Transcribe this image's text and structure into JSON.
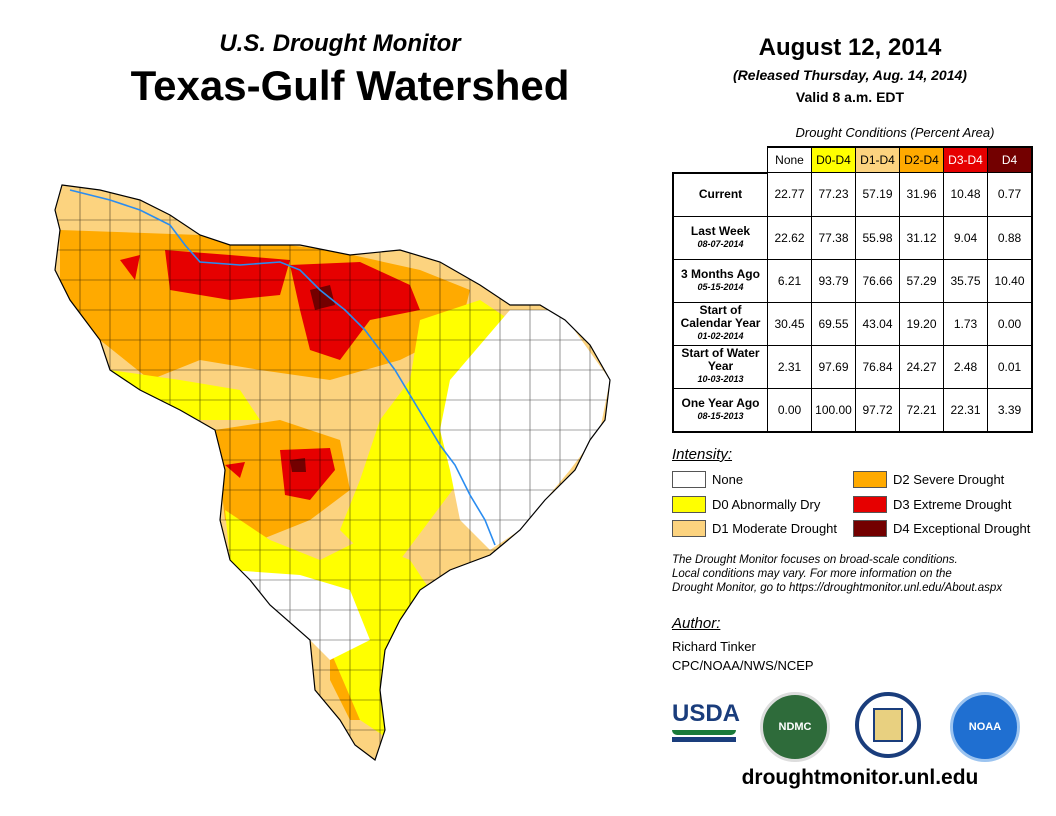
{
  "header": {
    "subtitle": "U.S. Drought Monitor",
    "title": "Texas-Gulf Watershed",
    "date": "August 12, 2014",
    "released": "(Released Thursday, Aug. 14, 2014)",
    "valid": "Valid 8 a.m. EDT"
  },
  "table": {
    "caption": "Drought Conditions (Percent Area)",
    "columns": [
      "None",
      "D0-D4",
      "D1-D4",
      "D2-D4",
      "D3-D4",
      "D4"
    ],
    "rows": [
      {
        "label": "Current",
        "date": "",
        "values": [
          "22.77",
          "77.23",
          "57.19",
          "31.96",
          "10.48",
          "0.77"
        ]
      },
      {
        "label": "Last Week",
        "date": "08-07-2014",
        "values": [
          "22.62",
          "77.38",
          "55.98",
          "31.12",
          "9.04",
          "0.88"
        ]
      },
      {
        "label": "3 Months Ago",
        "date": "05-15-2014",
        "values": [
          "6.21",
          "93.79",
          "76.66",
          "57.29",
          "35.75",
          "10.40"
        ]
      },
      {
        "label": "Start of Calendar Year",
        "date": "01-02-2014",
        "values": [
          "30.45",
          "69.55",
          "43.04",
          "19.20",
          "1.73",
          "0.00"
        ]
      },
      {
        "label": "Start of Water Year",
        "date": "10-03-2013",
        "values": [
          "2.31",
          "97.69",
          "76.84",
          "24.27",
          "2.48",
          "0.01"
        ]
      },
      {
        "label": "One Year Ago",
        "date": "08-15-2013",
        "values": [
          "0.00",
          "100.00",
          "97.72",
          "72.21",
          "22.31",
          "3.39"
        ]
      }
    ]
  },
  "legend": {
    "title": "Intensity:",
    "items": [
      {
        "label": "None",
        "color": "#ffffff"
      },
      {
        "label": "D0 Abnormally Dry",
        "color": "#ffff00"
      },
      {
        "label": "D1 Moderate Drought",
        "color": "#fcd37f"
      },
      {
        "label": "D2 Severe Drought",
        "color": "#ffaa00"
      },
      {
        "label": "D3 Extreme Drought",
        "color": "#e60000"
      },
      {
        "label": "D4 Exceptional Drought",
        "color": "#730000"
      }
    ]
  },
  "note": [
    "The Drought Monitor focuses on broad-scale conditions.",
    "Local conditions may vary. For more information on the",
    "Drought Monitor, go to https://droughtmonitor.unl.edu/About.aspx"
  ],
  "author": {
    "title": "Author:",
    "name": "Richard Tinker",
    "org": "CPC/NOAA/NWS/NCEP"
  },
  "logos": {
    "usda": "USDA",
    "ndmc": "NDMC",
    "noaa": "NOAA"
  },
  "footer_url": "droughtmonitor.unl.edu"
}
